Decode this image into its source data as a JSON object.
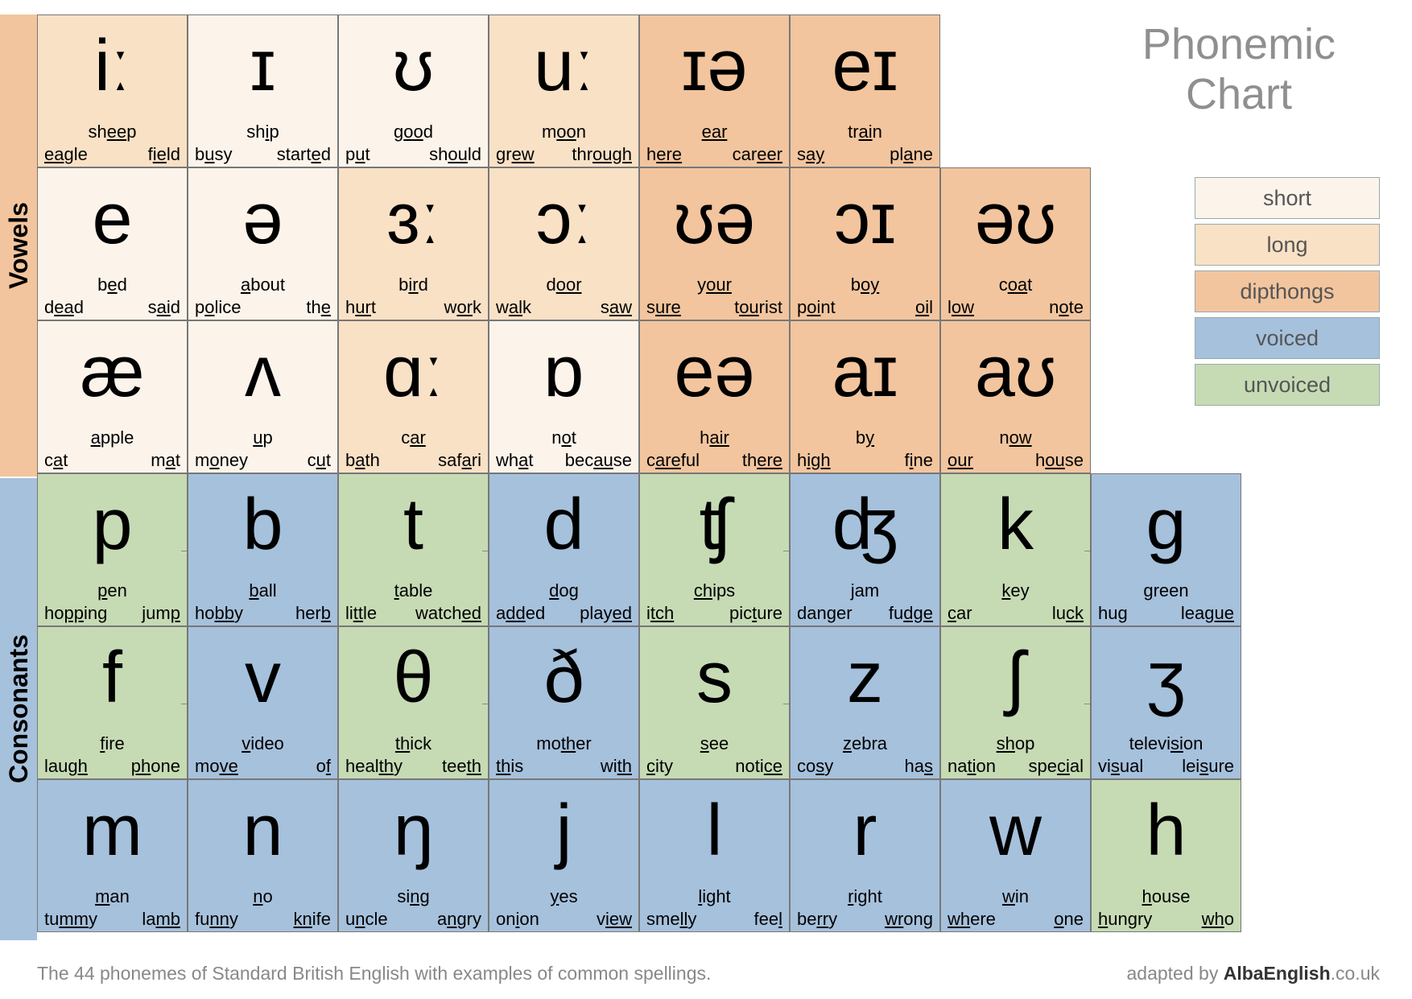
{
  "title": "Phonemic Chart",
  "colors": {
    "short": "#fcf4eb",
    "long": "#f9e1c6",
    "dipthongs": "#f2c59e",
    "voiced": "#a6c1dc",
    "unvoiced": "#c6dbb4",
    "title_color": "#8f8f8f",
    "border": "#777777"
  },
  "legend": [
    {
      "label": "short",
      "bg": "#fcf4eb"
    },
    {
      "label": "long",
      "bg": "#f9e1c6"
    },
    {
      "label": "dipthongs",
      "bg": "#f2c59e"
    },
    {
      "label": "voiced",
      "bg": "#a6c1dc"
    },
    {
      "label": "unvoiced",
      "bg": "#c6dbb4"
    }
  ],
  "sections": {
    "vowels": "Vowels",
    "consonants": "Consonants"
  },
  "footer_left": "The 44 phonemes of Standard British English with examples of common spellings.",
  "footer_right_pre": "adapted by ",
  "footer_right_bold": "AlbaEnglish",
  "footer_right_post": ".co.uk",
  "rows": [
    [
      {
        "sym": "iː",
        "cls": "long",
        "ex1": [
          [
            "sh",
            "ee",
            "p"
          ]
        ],
        "ex2": [
          [
            "",
            "ea",
            "gle"
          ],
          [
            "f",
            "ie",
            "ld"
          ]
        ]
      },
      {
        "sym": "ɪ",
        "cls": "short",
        "ex1": [
          [
            "sh",
            "i",
            "p"
          ]
        ],
        "ex2": [
          [
            "b",
            "u",
            "sy"
          ],
          [
            "start",
            "e",
            "d"
          ]
        ]
      },
      {
        "sym": "ʊ",
        "cls": "short",
        "ex1": [
          [
            "g",
            "oo",
            "d"
          ]
        ],
        "ex2": [
          [
            "p",
            "u",
            "t"
          ],
          [
            "sh",
            "ou",
            "ld"
          ]
        ]
      },
      {
        "sym": "uː",
        "cls": "long",
        "ex1": [
          [
            "m",
            "oo",
            "n"
          ]
        ],
        "ex2": [
          [
            "gr",
            "ew",
            ""
          ],
          [
            "thr",
            "ough",
            ""
          ]
        ]
      },
      {
        "sym": "ɪə",
        "cls": "dip",
        "ex1": [
          [
            "",
            "ear",
            ""
          ]
        ],
        "ex2": [
          [
            "h",
            "ere",
            ""
          ],
          [
            "car",
            "eer",
            ""
          ]
        ]
      },
      {
        "sym": "eɪ",
        "cls": "dip",
        "ex1": [
          [
            "tr",
            "ai",
            "n"
          ]
        ],
        "ex2": [
          [
            "s",
            "ay",
            ""
          ],
          [
            "pl",
            "a",
            "ne"
          ]
        ]
      }
    ],
    [
      {
        "sym": "e",
        "cls": "short",
        "ex1": [
          [
            "b",
            "e",
            "d"
          ]
        ],
        "ex2": [
          [
            "d",
            "ea",
            "d"
          ],
          [
            "s",
            "ai",
            "d"
          ]
        ]
      },
      {
        "sym": "ə",
        "cls": "short",
        "ex1": [
          [
            "",
            "a",
            "bout"
          ]
        ],
        "ex2": [
          [
            "p",
            "o",
            "lice"
          ],
          [
            "th",
            "e",
            ""
          ]
        ]
      },
      {
        "sym": "ɜː",
        "cls": "long",
        "ex1": [
          [
            "b",
            "ir",
            "d"
          ]
        ],
        "ex2": [
          [
            "h",
            "ur",
            "t"
          ],
          [
            "w",
            "or",
            "k"
          ]
        ]
      },
      {
        "sym": "ɔː",
        "cls": "long",
        "ex1": [
          [
            "d",
            "oor",
            ""
          ]
        ],
        "ex2": [
          [
            "w",
            "al",
            "k"
          ],
          [
            "s",
            "aw",
            ""
          ]
        ]
      },
      {
        "sym": "ʊə",
        "cls": "dip",
        "ex1": [
          [
            "y",
            "our",
            ""
          ]
        ],
        "ex2": [
          [
            "s",
            "ure",
            ""
          ],
          [
            "t",
            "ou",
            "rist"
          ]
        ]
      },
      {
        "sym": "ɔɪ",
        "cls": "dip",
        "ex1": [
          [
            "b",
            "oy",
            ""
          ]
        ],
        "ex2": [
          [
            "p",
            "oi",
            "nt"
          ],
          [
            "",
            "oi",
            "l"
          ]
        ]
      },
      {
        "sym": "əʊ",
        "cls": "dip",
        "ex1": [
          [
            "c",
            "oa",
            "t"
          ]
        ],
        "ex2": [
          [
            "l",
            "ow",
            ""
          ],
          [
            "n",
            "o",
            "te"
          ]
        ]
      }
    ],
    [
      {
        "sym": "æ",
        "cls": "short",
        "ex1": [
          [
            "",
            "a",
            "pple"
          ]
        ],
        "ex2": [
          [
            "c",
            "a",
            "t"
          ],
          [
            "m",
            "a",
            "t"
          ]
        ]
      },
      {
        "sym": "ʌ",
        "cls": "short",
        "ex1": [
          [
            "",
            "u",
            "p"
          ]
        ],
        "ex2": [
          [
            "m",
            "o",
            "ney"
          ],
          [
            "c",
            "u",
            "t"
          ]
        ]
      },
      {
        "sym": "ɑː",
        "cls": "long",
        "ex1": [
          [
            "c",
            "ar",
            ""
          ]
        ],
        "ex2": [
          [
            "b",
            "a",
            "th"
          ],
          [
            "saf",
            "a",
            "ri"
          ]
        ]
      },
      {
        "sym": "ɒ",
        "cls": "short",
        "ex1": [
          [
            "n",
            "o",
            "t"
          ]
        ],
        "ex2": [
          [
            "wh",
            "a",
            "t"
          ],
          [
            "bec",
            "au",
            "se"
          ]
        ]
      },
      {
        "sym": "eə",
        "cls": "dip",
        "ex1": [
          [
            "h",
            "air",
            ""
          ]
        ],
        "ex2": [
          [
            "c",
            "are",
            "ful"
          ],
          [
            "th",
            "ere",
            ""
          ]
        ]
      },
      {
        "sym": "aɪ",
        "cls": "dip",
        "ex1": [
          [
            "b",
            "y",
            ""
          ]
        ],
        "ex2": [
          [
            "h",
            "igh",
            ""
          ],
          [
            "f",
            "i",
            "ne"
          ]
        ]
      },
      {
        "sym": "aʊ",
        "cls": "dip",
        "ex1": [
          [
            "n",
            "ow",
            ""
          ]
        ],
        "ex2": [
          [
            "",
            "our",
            ""
          ],
          [
            "h",
            "ou",
            "se"
          ]
        ]
      }
    ],
    [
      {
        "sym": "p",
        "cls": "unvoiced",
        "conn": true,
        "ex1": [
          [
            "",
            "p",
            "en"
          ]
        ],
        "ex2": [
          [
            "ho",
            "pp",
            "ing"
          ],
          [
            "jum",
            "p",
            ""
          ]
        ]
      },
      {
        "sym": "b",
        "cls": "voiced",
        "ex1": [
          [
            "",
            "b",
            "all"
          ]
        ],
        "ex2": [
          [
            "ho",
            "bb",
            "y"
          ],
          [
            "her",
            "b",
            ""
          ]
        ]
      },
      {
        "sym": "t",
        "cls": "unvoiced",
        "conn": true,
        "ex1": [
          [
            "",
            "t",
            "able"
          ]
        ],
        "ex2": [
          [
            "li",
            "tt",
            "le"
          ],
          [
            "watch",
            "ed",
            ""
          ]
        ]
      },
      {
        "sym": "d",
        "cls": "voiced",
        "ex1": [
          [
            "",
            "d",
            "og"
          ]
        ],
        "ex2": [
          [
            "a",
            "dd",
            "ed"
          ],
          [
            "play",
            "ed",
            ""
          ]
        ]
      },
      {
        "sym": "ʧ",
        "cls": "unvoiced",
        "conn": true,
        "ex1": [
          [
            "",
            "ch",
            "ips"
          ]
        ],
        "ex2": [
          [
            "i",
            "tch",
            ""
          ],
          [
            "pic",
            "t",
            "ure"
          ]
        ]
      },
      {
        "sym": "ʤ",
        "cls": "voiced",
        "ex1": [
          [
            "",
            "j",
            "am"
          ]
        ],
        "ex2": [
          [
            "dan",
            "g",
            "er"
          ],
          [
            "fu",
            "dge",
            ""
          ]
        ]
      },
      {
        "sym": "k",
        "cls": "unvoiced",
        "conn": true,
        "ex1": [
          [
            "",
            "k",
            "ey"
          ]
        ],
        "ex2": [
          [
            "",
            "c",
            "ar"
          ],
          [
            "lu",
            "ck",
            ""
          ]
        ]
      },
      {
        "sym": "g",
        "cls": "voiced",
        "ex1": [
          [
            "",
            "g",
            "reen"
          ]
        ],
        "ex2": [
          [
            "hu",
            "g",
            ""
          ],
          [
            "lea",
            "gue",
            ""
          ]
        ]
      }
    ],
    [
      {
        "sym": "f",
        "cls": "unvoiced",
        "conn": true,
        "ex1": [
          [
            "",
            "f",
            "ire"
          ]
        ],
        "ex2": [
          [
            "lau",
            "gh",
            ""
          ],
          [
            "",
            "ph",
            "one"
          ]
        ]
      },
      {
        "sym": "v",
        "cls": "voiced",
        "ex1": [
          [
            "",
            "v",
            "ideo"
          ]
        ],
        "ex2": [
          [
            "mo",
            "ve",
            ""
          ],
          [
            "o",
            "f",
            ""
          ]
        ]
      },
      {
        "sym": "θ",
        "cls": "unvoiced",
        "conn": true,
        "ex1": [
          [
            "",
            "th",
            "ick"
          ]
        ],
        "ex2": [
          [
            "heal",
            "th",
            "y"
          ],
          [
            "tee",
            "th",
            ""
          ]
        ]
      },
      {
        "sym": "ð",
        "cls": "voiced",
        "ex1": [
          [
            "mo",
            "th",
            "er"
          ]
        ],
        "ex2": [
          [
            "",
            "th",
            "is"
          ],
          [
            "wi",
            "th",
            ""
          ]
        ]
      },
      {
        "sym": "s",
        "cls": "unvoiced",
        "conn": true,
        "ex1": [
          [
            "",
            "s",
            "ee"
          ]
        ],
        "ex2": [
          [
            "",
            "c",
            "ity"
          ],
          [
            "noti",
            "ce",
            ""
          ]
        ]
      },
      {
        "sym": "z",
        "cls": "voiced",
        "ex1": [
          [
            "",
            "z",
            "ebra"
          ]
        ],
        "ex2": [
          [
            "co",
            "s",
            "y"
          ],
          [
            "ha",
            "s",
            ""
          ]
        ]
      },
      {
        "sym": "ʃ",
        "cls": "unvoiced",
        "conn": true,
        "ex1": [
          [
            "",
            "sh",
            "op"
          ]
        ],
        "ex2": [
          [
            "na",
            "ti",
            "on"
          ],
          [
            "spe",
            "ci",
            "al"
          ]
        ]
      },
      {
        "sym": "ʒ",
        "cls": "voiced",
        "ex1": [
          [
            "televi",
            "si",
            "on"
          ]
        ],
        "ex2": [
          [
            "vi",
            "s",
            "ual"
          ],
          [
            "lei",
            "s",
            "ure"
          ]
        ]
      }
    ],
    [
      {
        "sym": "m",
        "cls": "voiced",
        "ex1": [
          [
            "",
            "m",
            "an"
          ]
        ],
        "ex2": [
          [
            "tu",
            "mm",
            "y"
          ],
          [
            "la",
            "mb",
            ""
          ]
        ]
      },
      {
        "sym": "n",
        "cls": "voiced",
        "ex1": [
          [
            "",
            "n",
            "o"
          ]
        ],
        "ex2": [
          [
            "fu",
            "nn",
            "y"
          ],
          [
            "",
            "kn",
            "ife"
          ]
        ]
      },
      {
        "sym": "ŋ",
        "cls": "voiced",
        "ex1": [
          [
            "si",
            "ng",
            ""
          ]
        ],
        "ex2": [
          [
            "u",
            "n",
            "cle"
          ],
          [
            "a",
            "n",
            "gry"
          ]
        ]
      },
      {
        "sym": "j",
        "cls": "voiced",
        "ex1": [
          [
            "",
            "y",
            "es"
          ]
        ],
        "ex2": [
          [
            "on",
            "i",
            "on"
          ],
          [
            "v",
            "iew",
            ""
          ]
        ]
      },
      {
        "sym": "l",
        "cls": "voiced",
        "ex1": [
          [
            "",
            "l",
            "ight"
          ]
        ],
        "ex2": [
          [
            "sme",
            "ll",
            "y"
          ],
          [
            "fee",
            "l",
            ""
          ]
        ]
      },
      {
        "sym": "r",
        "cls": "voiced",
        "ex1": [
          [
            "",
            "r",
            "ight"
          ]
        ],
        "ex2": [
          [
            "be",
            "rr",
            "y"
          ],
          [
            "",
            "wr",
            "ong"
          ]
        ]
      },
      {
        "sym": "w",
        "cls": "voiced",
        "ex1": [
          [
            "",
            "w",
            "in"
          ]
        ],
        "ex2": [
          [
            "",
            "wh",
            "ere"
          ],
          [
            "",
            "o",
            "ne"
          ]
        ]
      },
      {
        "sym": "h",
        "cls": "unvoiced",
        "ex1": [
          [
            "",
            "h",
            "ouse"
          ]
        ],
        "ex2": [
          [
            "",
            "h",
            "ungry"
          ],
          [
            "",
            "wh",
            "o"
          ]
        ]
      }
    ]
  ]
}
